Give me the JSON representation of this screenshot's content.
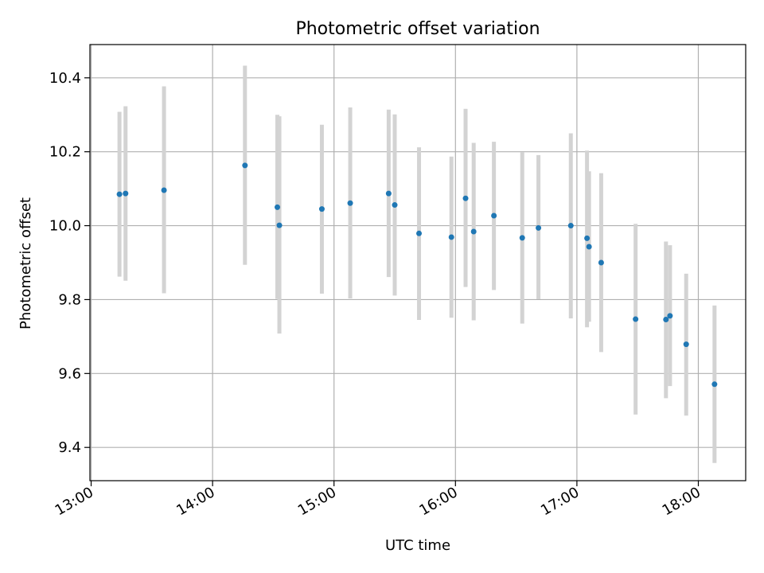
{
  "chart_data": {
    "type": "scatter",
    "title": "Photometric offset variation",
    "xlabel": "UTC time",
    "ylabel": "Photometric offset",
    "x_tick_labels": [
      "13:00",
      "14:00",
      "15:00",
      "16:00",
      "17:00",
      "18:00"
    ],
    "x_tick_hours": [
      13,
      14,
      15,
      16,
      17,
      18
    ],
    "y_tick_labels": [
      "9.4",
      "9.6",
      "9.8",
      "10.0",
      "10.2",
      "10.4"
    ],
    "y_tick_values": [
      9.4,
      9.6,
      9.8,
      10.0,
      10.2,
      10.4
    ],
    "xlim_hours": [
      12.99,
      18.39
    ],
    "ylim": [
      9.31,
      10.49
    ],
    "grid": true,
    "colors": {
      "point": "#1f77b4",
      "errorbar": "#d3d3d3",
      "grid": "#b0b0b0"
    },
    "points": [
      {
        "t": "13:14",
        "y": 10.085,
        "lo": 9.862,
        "hi": 10.308
      },
      {
        "t": "13:17",
        "y": 10.087,
        "lo": 9.851,
        "hi": 10.323
      },
      {
        "t": "13:36",
        "y": 10.096,
        "lo": 9.817,
        "hi": 10.377
      },
      {
        "t": "14:16",
        "y": 10.163,
        "lo": 9.894,
        "hi": 10.433
      },
      {
        "t": "14:32",
        "y": 10.05,
        "lo": 9.802,
        "hi": 10.3
      },
      {
        "t": "14:33",
        "y": 10.001,
        "lo": 9.708,
        "hi": 10.296
      },
      {
        "t": "14:54",
        "y": 10.045,
        "lo": 9.816,
        "hi": 10.273
      },
      {
        "t": "15:08",
        "y": 10.061,
        "lo": 9.803,
        "hi": 10.32
      },
      {
        "t": "15:27",
        "y": 10.087,
        "lo": 9.861,
        "hi": 10.314
      },
      {
        "t": "15:30",
        "y": 10.056,
        "lo": 9.811,
        "hi": 10.301
      },
      {
        "t": "15:42",
        "y": 9.979,
        "lo": 9.745,
        "hi": 10.212
      },
      {
        "t": "15:58",
        "y": 9.969,
        "lo": 9.751,
        "hi": 10.187
      },
      {
        "t": "16:05",
        "y": 10.074,
        "lo": 9.834,
        "hi": 10.316
      },
      {
        "t": "16:09",
        "y": 9.984,
        "lo": 9.744,
        "hi": 10.224
      },
      {
        "t": "16:19",
        "y": 10.027,
        "lo": 9.826,
        "hi": 10.227
      },
      {
        "t": "16:33",
        "y": 9.967,
        "lo": 9.735,
        "hi": 10.199
      },
      {
        "t": "16:41",
        "y": 9.994,
        "lo": 9.801,
        "hi": 10.191
      },
      {
        "t": "16:57",
        "y": 10.0,
        "lo": 9.749,
        "hi": 10.25
      },
      {
        "t": "17:05",
        "y": 9.966,
        "lo": 9.725,
        "hi": 10.203
      },
      {
        "t": "17:06",
        "y": 9.943,
        "lo": 9.74,
        "hi": 10.147
      },
      {
        "t": "17:12",
        "y": 9.9,
        "lo": 9.658,
        "hi": 10.142
      },
      {
        "t": "17:29",
        "y": 9.747,
        "lo": 9.489,
        "hi": 10.005
      },
      {
        "t": "17:44",
        "y": 9.746,
        "lo": 9.533,
        "hi": 9.957
      },
      {
        "t": "17:46",
        "y": 9.756,
        "lo": 9.566,
        "hi": 9.947
      },
      {
        "t": "17:54",
        "y": 9.679,
        "lo": 9.486,
        "hi": 9.87
      },
      {
        "t": "18:08",
        "y": 9.571,
        "lo": 9.358,
        "hi": 9.784
      }
    ]
  }
}
